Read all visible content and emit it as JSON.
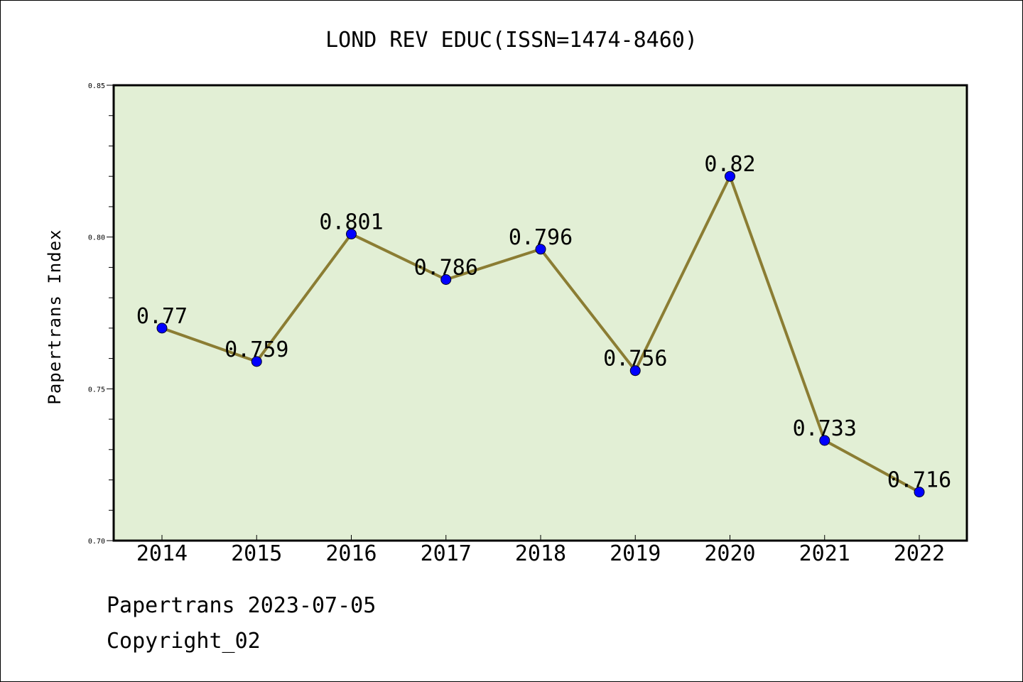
{
  "chart_data": {
    "type": "line",
    "title": "LOND REV EDUC(ISSN=1474-8460)",
    "xlabel": "",
    "ylabel": "Papertrans Index",
    "categories": [
      "2014",
      "2015",
      "2016",
      "2017",
      "2018",
      "2019",
      "2020",
      "2021",
      "2022"
    ],
    "values": [
      0.77,
      0.759,
      0.801,
      0.786,
      0.796,
      0.756,
      0.82,
      0.733,
      0.716
    ],
    "data_labels": [
      "0.77",
      "0.759",
      "0.801",
      "0.786",
      "0.796",
      "0.756",
      "0.82",
      "0.733",
      "0.716"
    ],
    "ylim": [
      0.7,
      0.85
    ],
    "yticks": [
      0.7,
      0.75,
      0.8,
      0.85
    ],
    "ytick_labels": [
      "0.70",
      "0.75",
      "0.80",
      "0.85"
    ],
    "grid": false,
    "legend": "none"
  },
  "colors": {
    "plot_background": "#e2efd5",
    "line": "#8b7d33",
    "marker": "#0000ff"
  },
  "footer": {
    "source": "Papertrans 2023-07-05",
    "copyright": "Copyright_02"
  }
}
